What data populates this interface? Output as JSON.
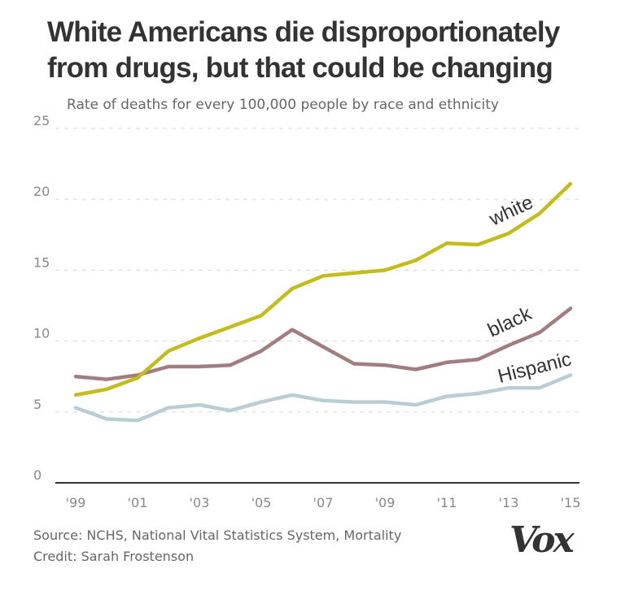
{
  "title": "White Americans die disproportionately from drugs, but that could be changing",
  "subtitle": "Rate of deaths for every 100,000 people by race and ethnicity",
  "footer": {
    "source": "Source: NCHS, National Vital Statistics System, Mortality",
    "credit": "Credit: Sarah Frostenson"
  },
  "logo": "Vox",
  "colors": {
    "white": "#c4bc1b",
    "black": "#a27d80",
    "hispanic": "#b9cdd7",
    "grid": "#d8d8d8",
    "axis": "#333333"
  },
  "chart_data": {
    "type": "line",
    "title": "White Americans die disproportionately from drugs, but that could be changing",
    "subtitle": "Rate of deaths for every 100,000 people by race and ethnicity",
    "x": [
      1999,
      2000,
      2001,
      2002,
      2003,
      2004,
      2005,
      2006,
      2007,
      2008,
      2009,
      2010,
      2011,
      2012,
      2013,
      2014,
      2015
    ],
    "xticks": [
      1999,
      2001,
      2003,
      2005,
      2007,
      2009,
      2011,
      2013,
      2015
    ],
    "xtick_labels": [
      "'99",
      "'01",
      "'03",
      "'05",
      "'07",
      "'09",
      "'11",
      "'13",
      "'15"
    ],
    "yticks": [
      0,
      5,
      10,
      15,
      20,
      25
    ],
    "ytick_labels": [
      "0",
      "5",
      "10",
      "15",
      "20",
      "25"
    ],
    "ylim": [
      0,
      25
    ],
    "grid": true,
    "series": [
      {
        "name": "white",
        "color": "#c4bc1b",
        "values": [
          6.2,
          6.6,
          7.4,
          9.3,
          10.2,
          11.0,
          11.8,
          13.7,
          14.6,
          14.8,
          15.0,
          15.7,
          16.9,
          16.8,
          17.6,
          19.0,
          21.1
        ]
      },
      {
        "name": "black",
        "color": "#a27d80",
        "values": [
          7.5,
          7.3,
          7.6,
          8.2,
          8.2,
          8.3,
          9.3,
          10.8,
          9.6,
          8.4,
          8.3,
          8.0,
          8.5,
          8.7,
          9.7,
          10.6,
          12.3
        ]
      },
      {
        "name": "Hispanic",
        "color": "#b9cdd7",
        "values": [
          5.3,
          4.5,
          4.4,
          5.3,
          5.5,
          5.1,
          5.7,
          6.2,
          5.8,
          5.7,
          5.7,
          5.5,
          6.1,
          6.3,
          6.7,
          6.7,
          7.6
        ]
      }
    ]
  }
}
